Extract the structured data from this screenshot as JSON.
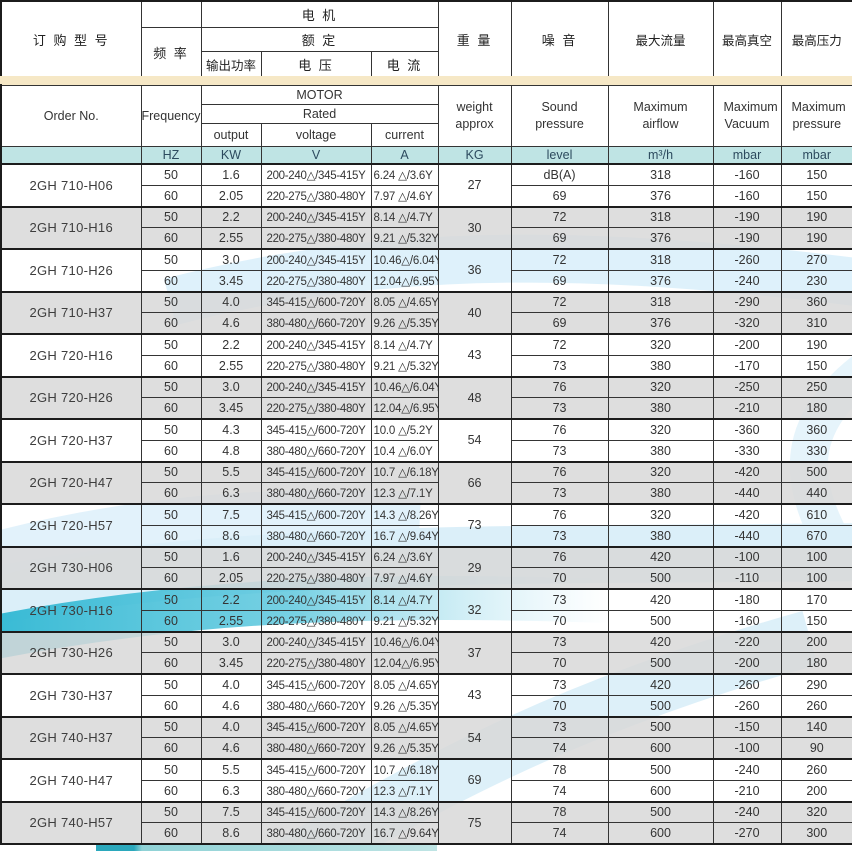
{
  "colors": {
    "units_bg": "#bfe4e4",
    "cream_band": "#f6e8c6",
    "row_gray": "#d8d8d8",
    "swoosh_cyan": "#3fbfd8",
    "swoosh_light": "#cfe9f7"
  },
  "table": {
    "header_cn": {
      "order": "订 购 型 号",
      "frequency": "频 率",
      "motor": "电  机",
      "rated": "额  定",
      "output": "输出功率",
      "voltage": "电 压",
      "current": "电 流",
      "weight": "重 量",
      "noise": "噪 音",
      "airflow": "最大流量",
      "vacuum": "最高真空",
      "pressure": "最高压力"
    },
    "header_en": {
      "order": "Order No.",
      "frequency": "Frequency",
      "motor": "MOTOR",
      "rated": "Rated",
      "output": "output",
      "voltage": "voltage",
      "current": "current",
      "weight": "weight approx",
      "sound": "Sound pressure",
      "airflow": "Maximum airflow",
      "vacuum": "Maximum Vacuum",
      "pressure": "Maximum pressure"
    },
    "units": {
      "hz": "HZ",
      "kw": "KW",
      "v": "V",
      "a": "A",
      "kg": "KG",
      "level": "level",
      "m3h": "m³/h",
      "vac": "mbar",
      "press": "mbar"
    }
  },
  "groups": [
    {
      "model": "2GH 710-H06",
      "shade": "white",
      "weight": "27",
      "rows": [
        {
          "hz": "50",
          "kw": "1.6",
          "voltage": "200-240△/345-415Y",
          "current": "6.24 △/3.6Y",
          "sound": "dB(A)",
          "airflow": "318",
          "vacuum": "-160",
          "pressure": "150"
        },
        {
          "hz": "60",
          "kw": "2.05",
          "voltage": "220-275△/380-480Y",
          "current": "7.97 △/4.6Y",
          "sound": "69",
          "airflow": "376",
          "vacuum": "-160",
          "pressure": "150"
        }
      ]
    },
    {
      "model": "2GH 710-H16",
      "shade": "gray",
      "weight": "30",
      "rows": [
        {
          "hz": "50",
          "kw": "2.2",
          "voltage": "200-240△/345-415Y",
          "current": "8.14 △/4.7Y",
          "sound": "72",
          "airflow": "318",
          "vacuum": "-190",
          "pressure": "190"
        },
        {
          "hz": "60",
          "kw": "2.55",
          "voltage": "220-275△/380-480Y",
          "current": "9.21 △/5.32Y",
          "sound": "69",
          "airflow": "376",
          "vacuum": "-190",
          "pressure": "190"
        }
      ]
    },
    {
      "model": "2GH 710-H26",
      "shade": "white",
      "weight": "36",
      "rows": [
        {
          "hz": "50",
          "kw": "3.0",
          "voltage": "200-240△/345-415Y",
          "current": "10.46△/6.04Y",
          "sound": "72",
          "airflow": "318",
          "vacuum": "-260",
          "pressure": "270"
        },
        {
          "hz": "60",
          "kw": "3.45",
          "voltage": "220-275△/380-480Y",
          "current": "12.04△/6.95Y",
          "sound": "69",
          "airflow": "376",
          "vacuum": "-240",
          "pressure": "230"
        }
      ]
    },
    {
      "model": "2GH 710-H37",
      "shade": "gray",
      "weight": "40",
      "rows": [
        {
          "hz": "50",
          "kw": "4.0",
          "voltage": "345-415△/600-720Y",
          "current": "8.05 △/4.65Y",
          "sound": "72",
          "airflow": "318",
          "vacuum": "-290",
          "pressure": "360"
        },
        {
          "hz": "60",
          "kw": "4.6",
          "voltage": "380-480△/660-720Y",
          "current": "9.26 △/5.35Y",
          "sound": "69",
          "airflow": "376",
          "vacuum": "-320",
          "pressure": "310"
        }
      ]
    },
    {
      "model": "2GH 720-H16",
      "shade": "white",
      "weight": "43",
      "rows": [
        {
          "hz": "50",
          "kw": "2.2",
          "voltage": "200-240△/345-415Y",
          "current": "8.14 △/4.7Y",
          "sound": "72",
          "airflow": "320",
          "vacuum": "-200",
          "pressure": "190"
        },
        {
          "hz": "60",
          "kw": "2.55",
          "voltage": "220-275△/380-480Y",
          "current": "9.21 △/5.32Y",
          "sound": "73",
          "airflow": "380",
          "vacuum": "-170",
          "pressure": "150"
        }
      ]
    },
    {
      "model": "2GH 720-H26",
      "shade": "gray",
      "weight": "48",
      "rows": [
        {
          "hz": "50",
          "kw": "3.0",
          "voltage": "200-240△/345-415Y",
          "current": "10.46△/6.04Y",
          "sound": "76",
          "airflow": "320",
          "vacuum": "-250",
          "pressure": "250"
        },
        {
          "hz": "60",
          "kw": "3.45",
          "voltage": "220-275△/380-480Y",
          "current": "12.04△/6.95Y",
          "sound": "73",
          "airflow": "380",
          "vacuum": "-210",
          "pressure": "180"
        }
      ]
    },
    {
      "model": "2GH 720-H37",
      "shade": "white",
      "weight": "54",
      "rows": [
        {
          "hz": "50",
          "kw": "4.3",
          "voltage": "345-415△/600-720Y",
          "current": "10.0 △/5.2Y",
          "sound": "76",
          "airflow": "320",
          "vacuum": "-360",
          "pressure": "360"
        },
        {
          "hz": "60",
          "kw": "4.8",
          "voltage": "380-480△/660-720Y",
          "current": "10.4 △/6.0Y",
          "sound": "73",
          "airflow": "380",
          "vacuum": "-330",
          "pressure": "330"
        }
      ]
    },
    {
      "model": "2GH 720-H47",
      "shade": "gray",
      "weight": "66",
      "rows": [
        {
          "hz": "50",
          "kw": "5.5",
          "voltage": "345-415△/600-720Y",
          "current": "10.7 △/6.18Y",
          "sound": "76",
          "airflow": "320",
          "vacuum": "-420",
          "pressure": "500"
        },
        {
          "hz": "60",
          "kw": "6.3",
          "voltage": "380-480△/660-720Y",
          "current": "12.3 △/7.1Y",
          "sound": "73",
          "airflow": "380",
          "vacuum": "-440",
          "pressure": "440"
        }
      ]
    },
    {
      "model": "2GH 720-H57",
      "shade": "white",
      "weight": "73",
      "rows": [
        {
          "hz": "50",
          "kw": "7.5",
          "voltage": "345-415△/600-720Y",
          "current": "14.3 △/8.26Y",
          "sound": "76",
          "airflow": "320",
          "vacuum": "-420",
          "pressure": "610"
        },
        {
          "hz": "60",
          "kw": "8.6",
          "voltage": "380-480△/660-720Y",
          "current": "16.7 △/9.64Y",
          "sound": "73",
          "airflow": "380",
          "vacuum": "-440",
          "pressure": "670"
        }
      ]
    },
    {
      "model": "2GH 730-H06",
      "shade": "gray",
      "weight": "29",
      "rows": [
        {
          "hz": "50",
          "kw": "1.6",
          "voltage": "200-240△/345-415Y",
          "current": "6.24 △/3.6Y",
          "sound": "76",
          "airflow": "420",
          "vacuum": "-100",
          "pressure": "100"
        },
        {
          "hz": "60",
          "kw": "2.05",
          "voltage": "220-275△/380-480Y",
          "current": "7.97 △/4.6Y",
          "sound": "70",
          "airflow": "500",
          "vacuum": "-110",
          "pressure": "100"
        }
      ]
    },
    {
      "model": "2GH 730-H16",
      "shade": "white",
      "weight": "32",
      "rows": [
        {
          "hz": "50",
          "kw": "2.2",
          "voltage": "200-240△/345-415Y",
          "current": "8.14 △/4.7Y",
          "sound": "73",
          "airflow": "420",
          "vacuum": "-180",
          "pressure": "170"
        },
        {
          "hz": "60",
          "kw": "2.55",
          "voltage": "220-275△/380-480Y",
          "current": "9.21 △/5.32Y",
          "sound": "70",
          "airflow": "500",
          "vacuum": "-160",
          "pressure": "150"
        }
      ]
    },
    {
      "model": "2GH 730-H26",
      "shade": "gray",
      "weight": "37",
      "rows": [
        {
          "hz": "50",
          "kw": "3.0",
          "voltage": "200-240△/345-415Y",
          "current": "10.46△/6.04Y",
          "sound": "73",
          "airflow": "420",
          "vacuum": "-220",
          "pressure": "200"
        },
        {
          "hz": "60",
          "kw": "3.45",
          "voltage": "220-275△/380-480Y",
          "current": "12.04△/6.95Y",
          "sound": "70",
          "airflow": "500",
          "vacuum": "-200",
          "pressure": "180"
        }
      ]
    },
    {
      "model": "2GH 730-H37",
      "shade": "white",
      "weight": "43",
      "rows": [
        {
          "hz": "50",
          "kw": "4.0",
          "voltage": "345-415△/600-720Y",
          "current": "8.05 △/4.65Y",
          "sound": "73",
          "airflow": "420",
          "vacuum": "-260",
          "pressure": "290"
        },
        {
          "hz": "60",
          "kw": "4.6",
          "voltage": "380-480△/660-720Y",
          "current": "9.26 △/5.35Y",
          "sound": "70",
          "airflow": "500",
          "vacuum": "-260",
          "pressure": "260"
        }
      ]
    },
    {
      "model": "2GH 740-H37",
      "shade": "gray",
      "weight": "54",
      "rows": [
        {
          "hz": "50",
          "kw": "4.0",
          "voltage": "345-415△/600-720Y",
          "current": "8.05 △/4.65Y",
          "sound": "73",
          "airflow": "500",
          "vacuum": "-150",
          "pressure": "140"
        },
        {
          "hz": "60",
          "kw": "4.6",
          "voltage": "380-480△/660-720Y",
          "current": "9.26 △/5.35Y",
          "sound": "74",
          "airflow": "600",
          "vacuum": "-100",
          "pressure": "90"
        }
      ]
    },
    {
      "model": "2GH 740-H47",
      "shade": "white",
      "weight": "69",
      "rows": [
        {
          "hz": "50",
          "kw": "5.5",
          "voltage": "345-415△/600-720Y",
          "current": "10.7 △/6.18Y",
          "sound": "78",
          "airflow": "500",
          "vacuum": "-240",
          "pressure": "260"
        },
        {
          "hz": "60",
          "kw": "6.3",
          "voltage": "380-480△/660-720Y",
          "current": "12.3 △/7.1Y",
          "sound": "74",
          "airflow": "600",
          "vacuum": "-210",
          "pressure": "200"
        }
      ]
    },
    {
      "model": "2GH 740-H57",
      "shade": "gray",
      "weight": "75",
      "rows": [
        {
          "hz": "50",
          "kw": "7.5",
          "voltage": "345-415△/600-720Y",
          "current": "14.3 △/8.26Y",
          "sound": "78",
          "airflow": "500",
          "vacuum": "-240",
          "pressure": "320"
        },
        {
          "hz": "60",
          "kw": "8.6",
          "voltage": "380-480△/660-720Y",
          "current": "16.7 △/9.64Y",
          "sound": "74",
          "airflow": "600",
          "vacuum": "-270",
          "pressure": "300"
        }
      ]
    }
  ]
}
